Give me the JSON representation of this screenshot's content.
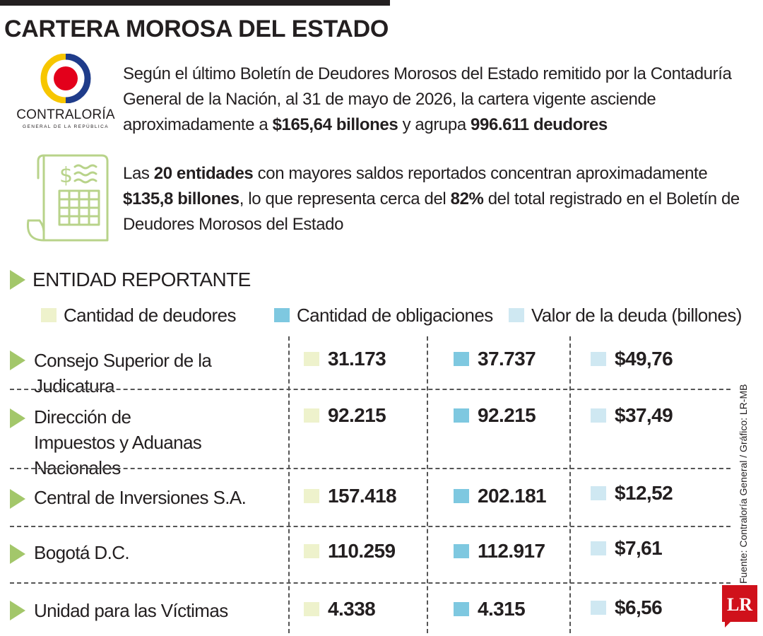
{
  "title": "CARTERA MOROSA DEL ESTADO",
  "logo": {
    "name": "CONTRALORÍA",
    "subtitle": "GENERAL DE LA REPÚBLICA",
    "colors": {
      "ring_yellow": "#f7c600",
      "ring_blue": "#1f3c8a",
      "center_red": "#e3001b"
    }
  },
  "intro": {
    "p1": {
      "text_1": "Según el último Boletín de Deudores Morosos del Estado remitido por la Contaduría General de la Nación, al 31 de mayo de 2026, la cartera vigente asciende aproximadamente a ",
      "bold_1": "$165,64 billones",
      "text_2": " y agrupa ",
      "bold_2": "996.611 deudores"
    },
    "p2": {
      "text_1": "Las ",
      "bold_1": "20 entidades",
      "text_2": " con mayores saldos reportados concentran aproximadamente ",
      "bold_2": "$135,8 billones",
      "text_3": ", lo que representa cerca del ",
      "bold_3": "82%",
      "text_4": " del total registrado en el Boletín de Deudores Morosos del Estado"
    }
  },
  "section_label": "ENTIDAD REPORTANTE",
  "legend": [
    {
      "label": "Cantidad de deudores",
      "color": "#eef2cc"
    },
    {
      "label": "Cantidad de obligaciones",
      "color": "#7ec8e0"
    },
    {
      "label": "Valor de la deuda (billones)",
      "color": "#cfe8f2"
    }
  ],
  "rows": [
    {
      "entity": "Consejo Superior de la Judicatura",
      "deudores": "31.173",
      "obligaciones": "37.737",
      "valor": "$49,76"
    },
    {
      "entity": "Dirección de Impuestos y Aduanas Nacionales",
      "deudores": "92.215",
      "obligaciones": "92.215",
      "valor": "$37,49"
    },
    {
      "entity": "Central de Inversiones S.A.",
      "deudores": "157.418",
      "obligaciones": "202.181",
      "valor": "$12,52"
    },
    {
      "entity": "Bogotá D.C.",
      "deudores": "110.259",
      "obligaciones": "112.917",
      "valor": "$7,61"
    },
    {
      "entity": "Unidad para las Víctimas",
      "deudores": "4.338",
      "obligaciones": "4.315",
      "valor": "$6,56"
    }
  ],
  "source": "Fuente: Contraloría General / Gráfico: LR-MB",
  "publisher_logo": "LR",
  "colors": {
    "accent_green": "#a3c76a",
    "lr_red": "#d0111b",
    "text": "#231f20"
  }
}
